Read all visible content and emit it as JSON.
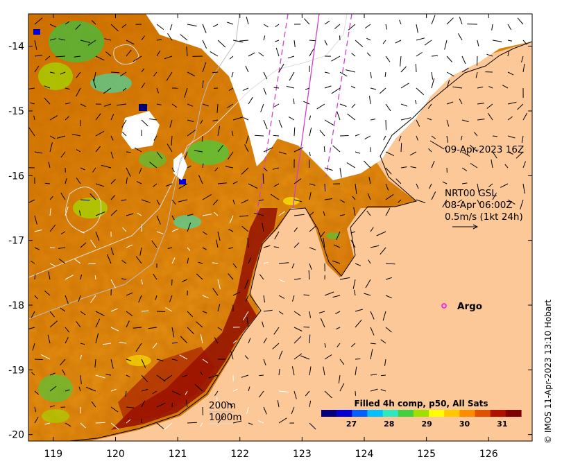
{
  "map": {
    "x_ticks": [
      "119",
      "120",
      "121",
      "122",
      "123",
      "124",
      "125",
      "126"
    ],
    "y_ticks": [
      "-14",
      "-15",
      "-16",
      "-17",
      "-18",
      "-19",
      "-20"
    ],
    "x_range": [
      118.6,
      126.7
    ],
    "y_range": [
      -20.1,
      -13.5
    ]
  },
  "annotations": {
    "satellite_time": "09-Apr-2023 16Z",
    "current_source": "NRT00 GSL",
    "current_time": "08-Apr 06:00Z",
    "current_scale": "0.5m/s (1kt 24h)",
    "argo_label": "Argo"
  },
  "contours": {
    "shallow": "200m",
    "deep": "1000m"
  },
  "colorbar": {
    "title": "Filled 4h comp, p50, All Sats",
    "ticks": [
      "27",
      "28",
      "29",
      "30",
      "31"
    ],
    "range": [
      26.2,
      31.5
    ],
    "colors": [
      "#00007f",
      "#0000d4",
      "#0060ff",
      "#00c0ff",
      "#2ee8c0",
      "#40d040",
      "#a0e000",
      "#ffff00",
      "#ffc800",
      "#ff8c00",
      "#e05000",
      "#b01000",
      "#7f0000"
    ]
  },
  "colors": {
    "land": "#fdc898",
    "cloud": "#ffffff",
    "swath": "#d040d0",
    "argo": "#ff00ff"
  },
  "credit": "© IMOS 11-Apr-2023 13:10 Hobart"
}
